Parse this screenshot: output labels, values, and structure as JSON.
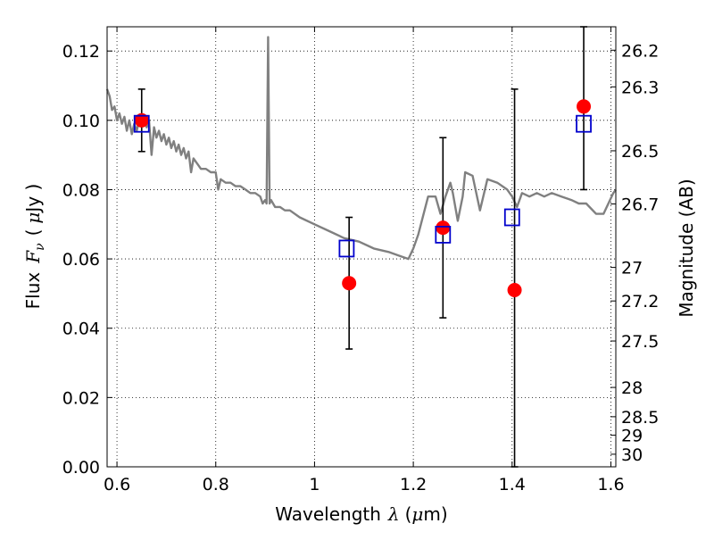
{
  "chart_data": {
    "type": "scatter",
    "xlabel_prefix": "Wavelength",
    "xlabel_symbol": "λ",
    "xlabel_unit_open": "(",
    "xlabel_unit_mu": "μ",
    "xlabel_unit_rest": "m)",
    "ylabel_prefix": "Flux",
    "ylabel_symbol": "F",
    "ylabel_subscript": "ν",
    "ylabel_unit_open": "(",
    "ylabel_unit_mu": "μ",
    "ylabel_unit_rest": "Jy )",
    "y2label": "Magnitude (AB)",
    "xlim": [
      0.58,
      1.61
    ],
    "ylim": [
      0.0,
      0.127
    ],
    "grid": true,
    "x_ticks": [
      {
        "value": 0.6,
        "label": "0.6"
      },
      {
        "value": 0.8,
        "label": "0.8"
      },
      {
        "value": 1.0,
        "label": "1"
      },
      {
        "value": 1.2,
        "label": "1.2"
      },
      {
        "value": 1.4,
        "label": "1.4"
      },
      {
        "value": 1.6,
        "label": "1.6"
      }
    ],
    "y_ticks": [
      {
        "value": 0.0,
        "label": "0.00"
      },
      {
        "value": 0.02,
        "label": "0.02"
      },
      {
        "value": 0.04,
        "label": "0.04"
      },
      {
        "value": 0.06,
        "label": "0.06"
      },
      {
        "value": 0.08,
        "label": "0.08"
      },
      {
        "value": 0.1,
        "label": "0.10"
      },
      {
        "value": 0.12,
        "label": "0.12"
      }
    ],
    "y2_ticks": [
      {
        "mag": 26.2,
        "label": "26.2"
      },
      {
        "mag": 26.3,
        "label": "26.3"
      },
      {
        "mag": 26.5,
        "label": "26.5"
      },
      {
        "mag": 26.7,
        "label": "26.7"
      },
      {
        "mag": 27.0,
        "label": "27"
      },
      {
        "mag": 27.2,
        "label": "27.2"
      },
      {
        "mag": 27.5,
        "label": "27.5"
      },
      {
        "mag": 28.0,
        "label": "28"
      },
      {
        "mag": 28.5,
        "label": "28.5"
      },
      {
        "mag": 29.0,
        "label": "29"
      },
      {
        "mag": 30.0,
        "label": "30"
      }
    ],
    "series": [
      {
        "kind": "line",
        "color": "#808080",
        "points": [
          [
            0.58,
            0.109
          ],
          [
            0.585,
            0.107
          ],
          [
            0.59,
            0.103
          ],
          [
            0.595,
            0.104
          ],
          [
            0.6,
            0.1
          ],
          [
            0.605,
            0.102
          ],
          [
            0.61,
            0.099
          ],
          [
            0.615,
            0.101
          ],
          [
            0.62,
            0.097
          ],
          [
            0.625,
            0.1
          ],
          [
            0.63,
            0.096
          ],
          [
            0.635,
            0.099
          ],
          [
            0.64,
            0.097
          ],
          [
            0.645,
            0.1
          ],
          [
            0.65,
            0.099
          ],
          [
            0.655,
            0.101
          ],
          [
            0.66,
            0.098
          ],
          [
            0.665,
            0.1
          ],
          [
            0.67,
            0.09
          ],
          [
            0.675,
            0.098
          ],
          [
            0.68,
            0.095
          ],
          [
            0.685,
            0.097
          ],
          [
            0.69,
            0.094
          ],
          [
            0.695,
            0.096
          ],
          [
            0.7,
            0.093
          ],
          [
            0.705,
            0.095
          ],
          [
            0.71,
            0.092
          ],
          [
            0.715,
            0.094
          ],
          [
            0.72,
            0.091
          ],
          [
            0.725,
            0.093
          ],
          [
            0.73,
            0.09
          ],
          [
            0.735,
            0.092
          ],
          [
            0.74,
            0.089
          ],
          [
            0.745,
            0.091
          ],
          [
            0.75,
            0.085
          ],
          [
            0.755,
            0.089
          ],
          [
            0.76,
            0.088
          ],
          [
            0.765,
            0.087
          ],
          [
            0.77,
            0.086
          ],
          [
            0.78,
            0.086
          ],
          [
            0.79,
            0.085
          ],
          [
            0.8,
            0.085
          ],
          [
            0.805,
            0.08
          ],
          [
            0.81,
            0.083
          ],
          [
            0.82,
            0.082
          ],
          [
            0.83,
            0.082
          ],
          [
            0.84,
            0.081
          ],
          [
            0.85,
            0.081
          ],
          [
            0.86,
            0.08
          ],
          [
            0.87,
            0.079
          ],
          [
            0.88,
            0.079
          ],
          [
            0.89,
            0.078
          ],
          [
            0.895,
            0.076
          ],
          [
            0.9,
            0.077
          ],
          [
            0.903,
            0.076
          ],
          [
            0.906,
            0.124
          ],
          [
            0.909,
            0.076
          ],
          [
            0.912,
            0.077
          ],
          [
            0.92,
            0.075
          ],
          [
            0.93,
            0.075
          ],
          [
            0.94,
            0.074
          ],
          [
            0.95,
            0.074
          ],
          [
            0.97,
            0.072
          ],
          [
            1.0,
            0.07
          ],
          [
            1.03,
            0.068
          ],
          [
            1.06,
            0.066
          ],
          [
            1.09,
            0.065
          ],
          [
            1.12,
            0.063
          ],
          [
            1.15,
            0.062
          ],
          [
            1.17,
            0.061
          ],
          [
            1.19,
            0.06
          ],
          [
            1.2,
            0.063
          ],
          [
            1.21,
            0.067
          ],
          [
            1.23,
            0.078
          ],
          [
            1.245,
            0.078
          ],
          [
            1.255,
            0.073
          ],
          [
            1.265,
            0.078
          ],
          [
            1.275,
            0.082
          ],
          [
            1.28,
            0.079
          ],
          [
            1.29,
            0.071
          ],
          [
            1.3,
            0.078
          ],
          [
            1.305,
            0.085
          ],
          [
            1.32,
            0.084
          ],
          [
            1.335,
            0.074
          ],
          [
            1.35,
            0.083
          ],
          [
            1.37,
            0.082
          ],
          [
            1.39,
            0.08
          ],
          [
            1.4,
            0.078
          ],
          [
            1.41,
            0.075
          ],
          [
            1.42,
            0.079
          ],
          [
            1.435,
            0.078
          ],
          [
            1.45,
            0.079
          ],
          [
            1.465,
            0.078
          ],
          [
            1.48,
            0.079
          ],
          [
            1.5,
            0.078
          ],
          [
            1.52,
            0.077
          ],
          [
            1.535,
            0.076
          ],
          [
            1.55,
            0.076
          ],
          [
            1.57,
            0.073
          ],
          [
            1.585,
            0.073
          ],
          [
            1.605,
            0.079
          ],
          [
            1.61,
            0.08
          ]
        ]
      },
      {
        "kind": "points",
        "marker": "circle",
        "color": "#ff0000",
        "points": [
          {
            "x": 0.65,
            "y": 0.1,
            "yerr_low": 0.091,
            "yerr_high": 0.109
          },
          {
            "x": 1.07,
            "y": 0.053,
            "yerr_low": 0.034,
            "yerr_high": 0.072
          },
          {
            "x": 1.26,
            "y": 0.069,
            "yerr_low": 0.043,
            "yerr_high": 0.095
          },
          {
            "x": 1.405,
            "y": 0.051,
            "yerr_low": 0.0,
            "yerr_high": 0.109
          },
          {
            "x": 1.545,
            "y": 0.104,
            "yerr_low": 0.08,
            "yerr_high": 0.127
          }
        ]
      },
      {
        "kind": "points",
        "marker": "open-square",
        "color": "#0000cc",
        "points": [
          {
            "x": 0.65,
            "y": 0.099
          },
          {
            "x": 1.065,
            "y": 0.063
          },
          {
            "x": 1.26,
            "y": 0.067
          },
          {
            "x": 1.4,
            "y": 0.072
          },
          {
            "x": 1.545,
            "y": 0.099
          }
        ]
      }
    ]
  }
}
